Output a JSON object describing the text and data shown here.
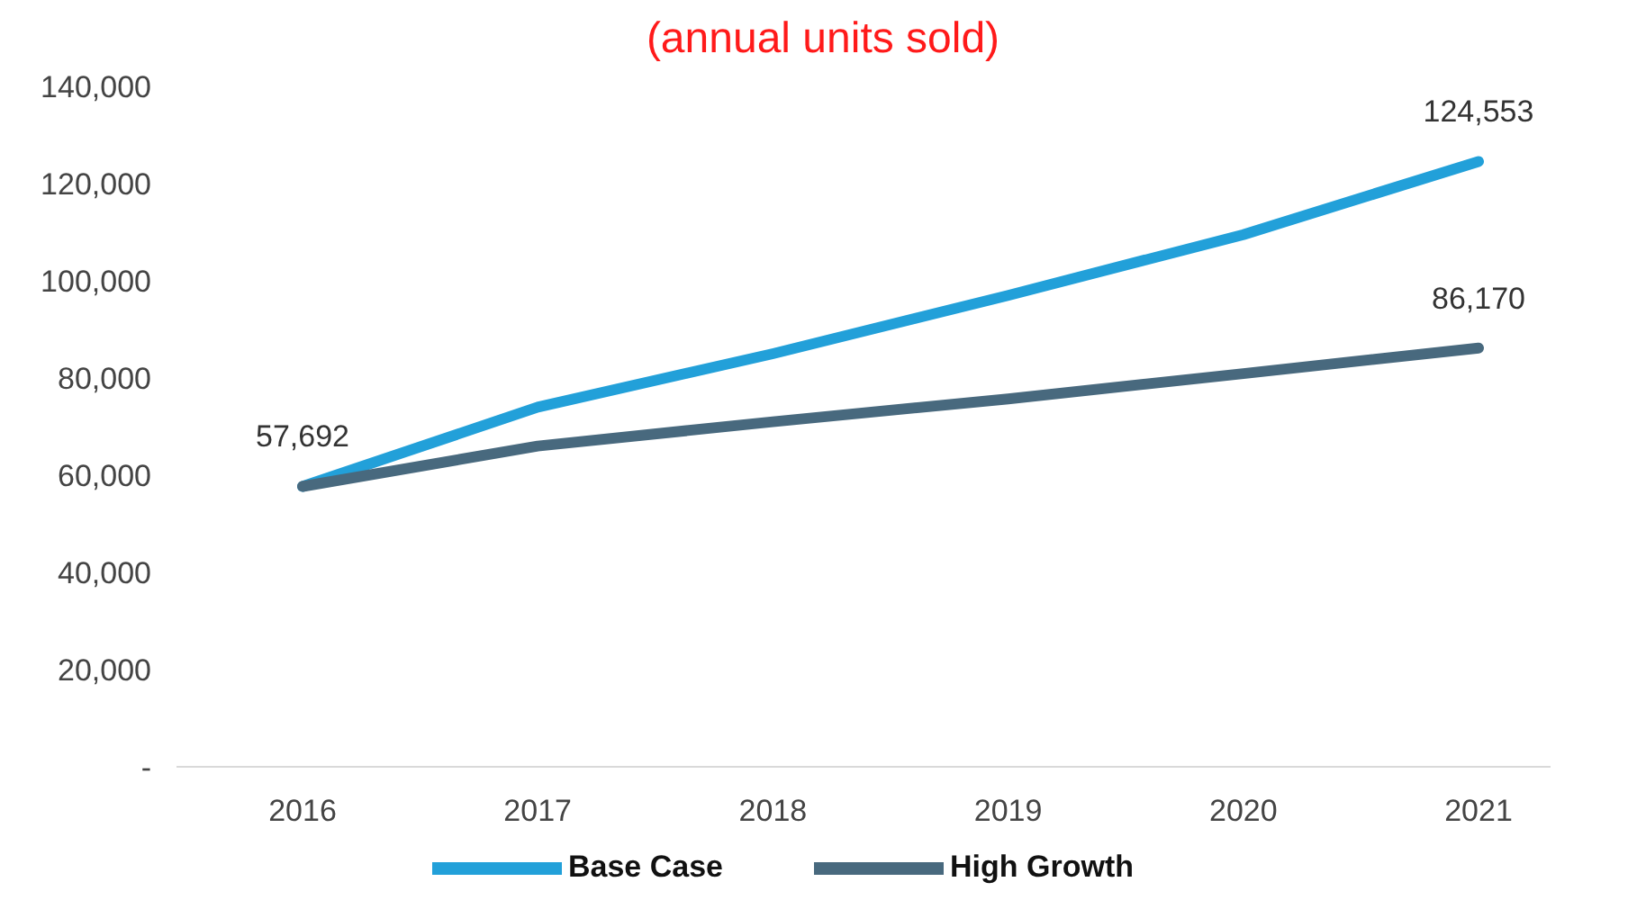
{
  "chart_data": {
    "type": "line",
    "title": "(annual units sold)",
    "categories": [
      "2016",
      "2017",
      "2018",
      "2019",
      "2020",
      "2021"
    ],
    "series": [
      {
        "name": "Base Case",
        "color": "#22a0d9",
        "values": [
          57692,
          74000,
          85000,
          97000,
          109500,
          124553
        ],
        "value_labels": [
          "57,692",
          null,
          null,
          null,
          null,
          "124,553"
        ]
      },
      {
        "name": "High Growth",
        "color": "#48697e",
        "values": [
          57692,
          66000,
          71000,
          75700,
          80900,
          86170
        ],
        "value_labels": [
          null,
          null,
          null,
          null,
          null,
          "86,170"
        ]
      }
    ],
    "ylim": [
      0,
      140000
    ],
    "yticks": [
      {
        "value": 0,
        "label": "-"
      },
      {
        "value": 20000,
        "label": "20,000"
      },
      {
        "value": 40000,
        "label": "40,000"
      },
      {
        "value": 60000,
        "label": "60,000"
      },
      {
        "value": 80000,
        "label": "80,000"
      },
      {
        "value": 100000,
        "label": "100,000"
      },
      {
        "value": 120000,
        "label": "120,000"
      },
      {
        "value": 140000,
        "label": "140,000"
      }
    ],
    "grid": false,
    "legend": "bottom",
    "marker": "none",
    "line_style": "solid"
  }
}
